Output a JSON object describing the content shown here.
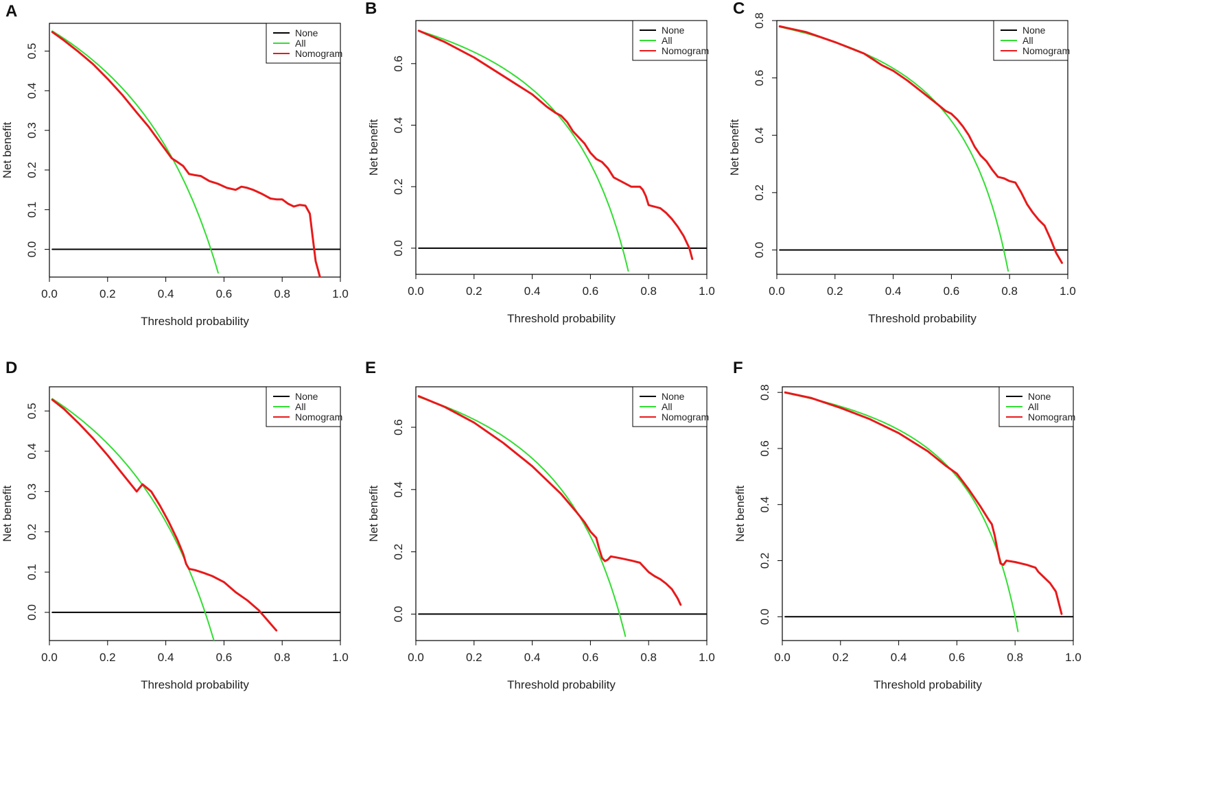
{
  "chart_data": [
    {
      "panel": "A",
      "type": "line",
      "xlabel": "Threshold probability",
      "ylabel": "Net benefit",
      "xlim": [
        0,
        1
      ],
      "ylim": [
        -0.07,
        0.57
      ],
      "xticks": [
        "0.0",
        "0.2",
        "0.4",
        "0.6",
        "0.8",
        "1.0"
      ],
      "xtickvals": [
        0,
        0.2,
        0.4,
        0.6,
        0.8,
        1.0
      ],
      "yticks": [
        "0.0",
        "0.1",
        "0.2",
        "0.3",
        "0.4",
        "0.5"
      ],
      "ytickvals": [
        0,
        0.1,
        0.2,
        0.3,
        0.4,
        0.5
      ],
      "legend": [
        "None",
        "All",
        "Nomogram"
      ],
      "colors": {
        "None": "#000000",
        "All": "#33dd33",
        "Nomogram": "#e8191a"
      },
      "series": [
        {
          "name": "None",
          "x": [
            0.01,
            1.0
          ],
          "y": [
            0,
            0
          ]
        },
        {
          "name": "All",
          "prevalence": 0.555,
          "x_end": 0.58
        },
        {
          "name": "Nomogram",
          "x": [
            0.01,
            0.05,
            0.1,
            0.15,
            0.2,
            0.25,
            0.3,
            0.34,
            0.37,
            0.4,
            0.42,
            0.44,
            0.46,
            0.48,
            0.5,
            0.52,
            0.55,
            0.58,
            0.61,
            0.64,
            0.66,
            0.68,
            0.7,
            0.73,
            0.76,
            0.78,
            0.8,
            0.82,
            0.84,
            0.86,
            0.88,
            0.895,
            0.905,
            0.915,
            0.93
          ],
          "y": [
            0.548,
            0.527,
            0.498,
            0.467,
            0.43,
            0.39,
            0.345,
            0.31,
            0.28,
            0.25,
            0.23,
            0.22,
            0.21,
            0.19,
            0.187,
            0.185,
            0.172,
            0.165,
            0.155,
            0.15,
            0.158,
            0.155,
            0.15,
            0.14,
            0.128,
            0.126,
            0.126,
            0.115,
            0.108,
            0.112,
            0.11,
            0.09,
            0.03,
            -0.03,
            -0.07
          ]
        }
      ]
    },
    {
      "panel": "B",
      "type": "line",
      "xlabel": "Threshold probability",
      "ylabel": "Net benefit",
      "xlim": [
        0,
        1
      ],
      "ylim": [
        -0.085,
        0.74
      ],
      "xticks": [
        "0.0",
        "0.2",
        "0.4",
        "0.6",
        "0.8",
        "1.0"
      ],
      "xtickvals": [
        0,
        0.2,
        0.4,
        0.6,
        0.8,
        1.0
      ],
      "yticks": [
        "0.0",
        "0.2",
        "0.4",
        "0.6"
      ],
      "ytickvals": [
        0,
        0.2,
        0.4,
        0.6
      ],
      "legend": [
        "None",
        "All",
        "Nomogram"
      ],
      "colors": {
        "None": "#000000",
        "All": "#33dd33",
        "Nomogram": "#e8191a"
      },
      "series": [
        {
          "name": "None",
          "x": [
            0.01,
            1.0
          ],
          "y": [
            0,
            0
          ]
        },
        {
          "name": "All",
          "prevalence": 0.71,
          "x_end": 0.733
        },
        {
          "name": "Nomogram",
          "x": [
            0.01,
            0.1,
            0.2,
            0.3,
            0.35,
            0.4,
            0.45,
            0.48,
            0.5,
            0.52,
            0.54,
            0.56,
            0.58,
            0.6,
            0.62,
            0.64,
            0.66,
            0.68,
            0.7,
            0.72,
            0.74,
            0.76,
            0.77,
            0.78,
            0.79,
            0.8,
            0.82,
            0.84,
            0.86,
            0.88,
            0.9,
            0.92,
            0.94,
            0.95
          ],
          "y": [
            0.707,
            0.67,
            0.62,
            0.56,
            0.53,
            0.5,
            0.46,
            0.44,
            0.43,
            0.41,
            0.38,
            0.36,
            0.34,
            0.31,
            0.29,
            0.28,
            0.26,
            0.23,
            0.22,
            0.21,
            0.2,
            0.2,
            0.2,
            0.19,
            0.17,
            0.14,
            0.135,
            0.13,
            0.115,
            0.095,
            0.07,
            0.04,
            0.0,
            -0.035
          ]
        }
      ]
    },
    {
      "panel": "C",
      "type": "line",
      "xlabel": "Threshold probability",
      "ylabel": "Net benefit",
      "xlim": [
        0,
        1
      ],
      "ylim": [
        -0.085,
        0.8
      ],
      "xticks": [
        "0.0",
        "0.2",
        "0.4",
        "0.6",
        "0.8",
        "1.0"
      ],
      "xtickvals": [
        0,
        0.2,
        0.4,
        0.6,
        0.8,
        1.0
      ],
      "yticks": [
        "0.0",
        "0.2",
        "0.4",
        "0.6",
        "0.8"
      ],
      "ytickvals": [
        0,
        0.2,
        0.4,
        0.6,
        0.8
      ],
      "legend": [
        "None",
        "All",
        "Nomogram"
      ],
      "colors": {
        "None": "#000000",
        "All": "#33dd33",
        "Nomogram": "#e8191a"
      },
      "series": [
        {
          "name": "None",
          "x": [
            0.01,
            1.0
          ],
          "y": [
            0,
            0
          ]
        },
        {
          "name": "All",
          "prevalence": 0.78,
          "x_end": 0.795
        },
        {
          "name": "Nomogram",
          "x": [
            0.01,
            0.1,
            0.2,
            0.3,
            0.33,
            0.36,
            0.4,
            0.45,
            0.5,
            0.55,
            0.58,
            0.6,
            0.62,
            0.64,
            0.66,
            0.68,
            0.7,
            0.72,
            0.74,
            0.76,
            0.78,
            0.8,
            0.82,
            0.84,
            0.86,
            0.88,
            0.9,
            0.92,
            0.94,
            0.96,
            0.98
          ],
          "y": [
            0.78,
            0.76,
            0.725,
            0.685,
            0.665,
            0.645,
            0.625,
            0.59,
            0.55,
            0.51,
            0.485,
            0.475,
            0.455,
            0.43,
            0.4,
            0.36,
            0.33,
            0.31,
            0.28,
            0.255,
            0.25,
            0.24,
            0.235,
            0.2,
            0.16,
            0.13,
            0.105,
            0.085,
            0.04,
            -0.01,
            -0.045
          ]
        }
      ]
    },
    {
      "panel": "D",
      "type": "line",
      "xlabel": "Threshold probability",
      "ylabel": "Net benefit",
      "xlim": [
        0,
        1
      ],
      "ylim": [
        -0.07,
        0.56
      ],
      "xticks": [
        "0.0",
        "0.2",
        "0.4",
        "0.6",
        "0.8",
        "1.0"
      ],
      "xtickvals": [
        0,
        0.2,
        0.4,
        0.6,
        0.8,
        1.0
      ],
      "yticks": [
        "0.0",
        "0.1",
        "0.2",
        "0.3",
        "0.4",
        "0.5"
      ],
      "ytickvals": [
        0,
        0.1,
        0.2,
        0.3,
        0.4,
        0.5
      ],
      "legend": [
        "None",
        "All",
        "Nomogram"
      ],
      "colors": {
        "None": "#000000",
        "All": "#33dd33",
        "Nomogram": "#e8191a"
      },
      "series": [
        {
          "name": "None",
          "x": [
            0.01,
            1.0
          ],
          "y": [
            0,
            0
          ]
        },
        {
          "name": "All",
          "prevalence": 0.535,
          "x_end": 0.565
        },
        {
          "name": "Nomogram",
          "x": [
            0.01,
            0.05,
            0.1,
            0.15,
            0.2,
            0.25,
            0.3,
            0.32,
            0.35,
            0.38,
            0.41,
            0.44,
            0.46,
            0.47,
            0.48,
            0.5,
            0.53,
            0.56,
            0.6,
            0.64,
            0.68,
            0.72,
            0.75,
            0.78
          ],
          "y": [
            0.528,
            0.505,
            0.47,
            0.432,
            0.39,
            0.345,
            0.3,
            0.318,
            0.3,
            0.265,
            0.225,
            0.18,
            0.145,
            0.12,
            0.108,
            0.105,
            0.098,
            0.09,
            0.075,
            0.05,
            0.03,
            0.005,
            -0.02,
            -0.045
          ]
        }
      ]
    },
    {
      "panel": "E",
      "type": "line",
      "xlabel": "Threshold probability",
      "ylabel": "Net benefit",
      "xlim": [
        0,
        1
      ],
      "ylim": [
        -0.085,
        0.73
      ],
      "xticks": [
        "0.0",
        "0.2",
        "0.4",
        "0.6",
        "0.8",
        "1.0"
      ],
      "xtickvals": [
        0,
        0.2,
        0.4,
        0.6,
        0.8,
        1.0
      ],
      "yticks": [
        "0.0",
        "0.2",
        "0.4",
        "0.6"
      ],
      "ytickvals": [
        0,
        0.2,
        0.4,
        0.6
      ],
      "legend": [
        "None",
        "All",
        "Nomogram"
      ],
      "colors": {
        "None": "#000000",
        "All": "#33dd33",
        "Nomogram": "#e8191a"
      },
      "series": [
        {
          "name": "None",
          "x": [
            0.01,
            1.0
          ],
          "y": [
            0,
            0
          ]
        },
        {
          "name": "All",
          "prevalence": 0.7,
          "x_end": 0.72
        },
        {
          "name": "Nomogram",
          "x": [
            0.01,
            0.1,
            0.2,
            0.3,
            0.4,
            0.45,
            0.5,
            0.55,
            0.58,
            0.6,
            0.62,
            0.63,
            0.64,
            0.65,
            0.66,
            0.67,
            0.7,
            0.74,
            0.77,
            0.78,
            0.8,
            0.82,
            0.84,
            0.86,
            0.88,
            0.9,
            0.91
          ],
          "y": [
            0.7,
            0.665,
            0.615,
            0.55,
            0.475,
            0.43,
            0.385,
            0.33,
            0.295,
            0.265,
            0.245,
            0.21,
            0.18,
            0.17,
            0.175,
            0.185,
            0.18,
            0.172,
            0.165,
            0.155,
            0.135,
            0.122,
            0.112,
            0.098,
            0.08,
            0.05,
            0.03
          ]
        }
      ]
    },
    {
      "panel": "F",
      "type": "line",
      "xlabel": "Threshold probability",
      "ylabel": "Net benefit",
      "xlim": [
        0,
        1
      ],
      "ylim": [
        -0.085,
        0.82
      ],
      "xticks": [
        "0.0",
        "0.2",
        "0.4",
        "0.6",
        "0.8",
        "1.0"
      ],
      "xtickvals": [
        0,
        0.2,
        0.4,
        0.6,
        0.8,
        1.0
      ],
      "yticks": [
        "0.0",
        "0.2",
        "0.4",
        "0.6",
        "0.8"
      ],
      "ytickvals": [
        0,
        0.2,
        0.4,
        0.6,
        0.8
      ],
      "legend": [
        "None",
        "All",
        "Nomogram"
      ],
      "colors": {
        "None": "#000000",
        "All": "#33dd33",
        "Nomogram": "#e8191a"
      },
      "series": [
        {
          "name": "None",
          "x": [
            0.01,
            1.0
          ],
          "y": [
            0,
            0
          ]
        },
        {
          "name": "All",
          "prevalence": 0.8,
          "x_end": 0.81
        },
        {
          "name": "Nomogram",
          "x": [
            0.01,
            0.1,
            0.2,
            0.3,
            0.4,
            0.5,
            0.56,
            0.6,
            0.64,
            0.68,
            0.71,
            0.72,
            0.73,
            0.74,
            0.75,
            0.76,
            0.77,
            0.8,
            0.84,
            0.87,
            0.88,
            0.9,
            0.92,
            0.94,
            0.95,
            0.96
          ],
          "y": [
            0.8,
            0.78,
            0.745,
            0.705,
            0.655,
            0.59,
            0.54,
            0.51,
            0.455,
            0.395,
            0.345,
            0.33,
            0.29,
            0.235,
            0.19,
            0.185,
            0.2,
            0.195,
            0.185,
            0.175,
            0.16,
            0.14,
            0.12,
            0.09,
            0.05,
            0.01
          ]
        }
      ]
    }
  ]
}
